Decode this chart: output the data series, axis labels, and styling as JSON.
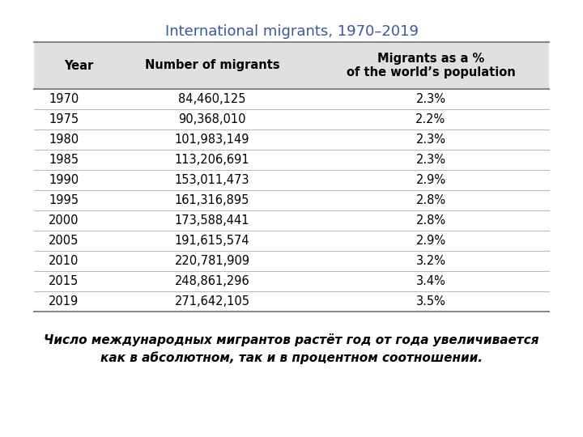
{
  "title": "International migrants, 1970–2019",
  "title_color": "#3B5998",
  "title_fontsize": 13,
  "col_headers": [
    "Year",
    "Number of migrants",
    "Migrants as a %\nof the world’s population"
  ],
  "rows": [
    [
      "1970",
      "84,460,125",
      "2.3%"
    ],
    [
      "1975",
      "90,368,010",
      "2.2%"
    ],
    [
      "1980",
      "101,983,149",
      "2.3%"
    ],
    [
      "1985",
      "113,206,691",
      "2.3%"
    ],
    [
      "1990",
      "153,011,473",
      "2.9%"
    ],
    [
      "1995",
      "161,316,895",
      "2.8%"
    ],
    [
      "2000",
      "173,588,441",
      "2.8%"
    ],
    [
      "2005",
      "191,615,574",
      "2.9%"
    ],
    [
      "2010",
      "220,781,909",
      "3.2%"
    ],
    [
      "2015",
      "248,861,296",
      "3.4%"
    ],
    [
      "2019",
      "271,642,105",
      "3.5%"
    ]
  ],
  "footer_line1": "Число международных мигрантов растёт год от года увеличивается",
  "footer_line2": "как в абсолютном, так и в процентном соотношении.",
  "header_bg": "#E0E0E0",
  "row_line_color": "#BBBBBB",
  "border_color": "#888888",
  "background_color": "#FFFFFF",
  "header_fontsize": 10.5,
  "data_fontsize": 10.5,
  "footer_fontsize": 11
}
